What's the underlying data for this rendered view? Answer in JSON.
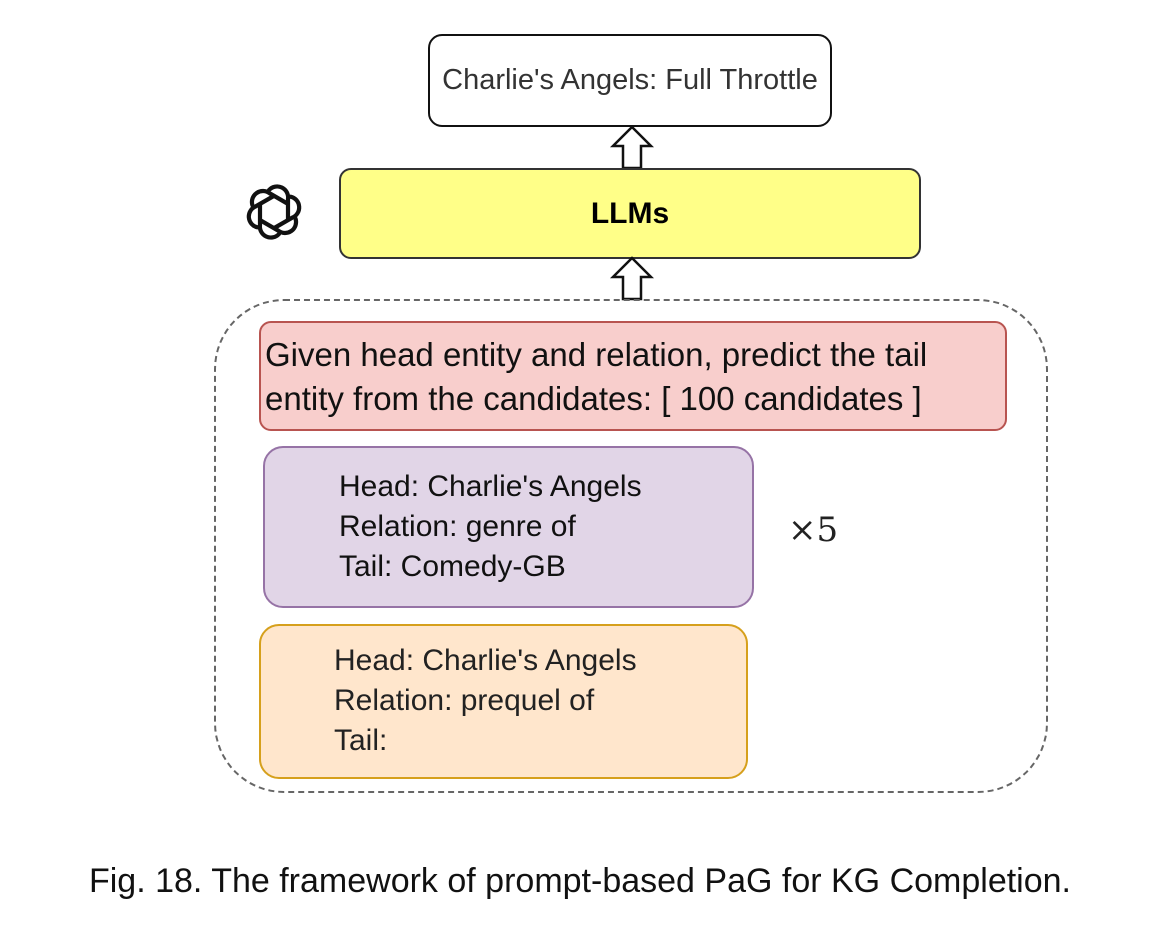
{
  "output": {
    "label": "Charlie's Angels: Full Throttle"
  },
  "model": {
    "label": "LLMs",
    "icon": "openai-logo-icon"
  },
  "prompt": {
    "instruction_lines": [
      "Given head entity and relation, predict the tail",
      "entity from the candidates: [ 100 candidates ]"
    ],
    "example_lines": [
      "Head: Charlie's Angels",
      "Relation: genre of",
      "Tail: Comedy-GB"
    ],
    "example_multiplier": "×5",
    "query_lines": [
      "Head: Charlie's Angels",
      "Relation: prequel of",
      "Tail:"
    ]
  },
  "caption": "Fig. 18. The framework of prompt-based PaG for KG Completion.",
  "colors": {
    "llm_fill": "#ffff88",
    "instruction_fill": "#f8cecc",
    "instruction_stroke": "#b85450",
    "example_fill": "#e1d5e7",
    "example_stroke": "#9673a6",
    "query_fill": "#ffe6cc",
    "query_stroke": "#d6a01c"
  }
}
